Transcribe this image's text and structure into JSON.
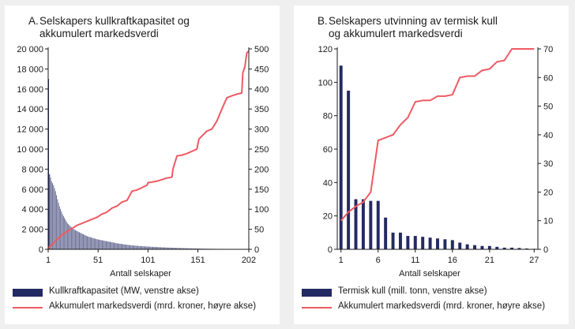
{
  "panels": [
    {
      "letter": "A.",
      "title_lines": [
        "Selskapers kullkraftkapasitet og",
        "akkumulert markedsverdi"
      ],
      "xlabel": "Antall selskaper",
      "legend": [
        {
          "kind": "bar",
          "label": "Kullkraftkapasitet (MW, venstre akse)"
        },
        {
          "kind": "line",
          "label": "Akkumulert markedsverdi (mrd. kroner, høyre akse)"
        }
      ]
    },
    {
      "letter": "B.",
      "title_lines": [
        "Selskapers utvinning av termisk kull",
        "og akkumulert markedsverdi"
      ],
      "xlabel": "Antall selskaper",
      "legend": [
        {
          "kind": "bar",
          "label": "Termisk kull (mill. tonn, venstre akse)"
        },
        {
          "kind": "line",
          "label": "Akkumulert markedsverdi (mrd. kroner, høyre akse)"
        }
      ]
    }
  ],
  "colors": {
    "bar": "#242a62",
    "bar_dense": "#6f7398",
    "line": "#ee5a63",
    "axis": "#1a1a1a"
  },
  "chart_data": [
    {
      "type": "bar",
      "title": "Selskapers kullkraftkapasitet og akkumulert markedsverdi",
      "xlabel": "Antall selskaper",
      "xlim": [
        1,
        202
      ],
      "xticks": [
        1,
        51,
        101,
        151,
        202
      ],
      "ylim_left": [
        0,
        20000
      ],
      "yticks_left": [
        "0",
        "2 000",
        "4 000",
        "6 000",
        "8 000",
        "10 000",
        "12 000",
        "14 000",
        "16 000",
        "18 000",
        "20 000"
      ],
      "ylim_right": [
        0,
        500
      ],
      "yticks_right": [
        "0",
        "50",
        "100",
        "150",
        "200",
        "250",
        "300",
        "350",
        "400",
        "450",
        "500"
      ],
      "series": [
        {
          "name": "Kullkraftkapasitet (MW, venstre akse)",
          "axis": "left",
          "kind": "bar",
          "keypoints": [
            [
              1,
              17000
            ],
            [
              2,
              7500
            ],
            [
              4,
              6800
            ],
            [
              6,
              6400
            ],
            [
              8,
              5800
            ],
            [
              10,
              5000
            ],
            [
              12,
              4300
            ],
            [
              15,
              3500
            ],
            [
              20,
              2600
            ],
            [
              25,
              2100
            ],
            [
              30,
              1800
            ],
            [
              40,
              1300
            ],
            [
              50,
              1000
            ],
            [
              60,
              800
            ],
            [
              70,
              600
            ],
            [
              80,
              450
            ],
            [
              90,
              350
            ],
            [
              100,
              280
            ],
            [
              120,
              180
            ],
            [
              140,
              110
            ],
            [
              160,
              60
            ],
            [
              180,
              30
            ],
            [
              202,
              10
            ]
          ]
        },
        {
          "name": "Akkumulert markedsverdi (mrd. kroner, høyre akse)",
          "axis": "right",
          "kind": "line",
          "points": [
            [
              1,
              0
            ],
            [
              2,
              5
            ],
            [
              5,
              12
            ],
            [
              10,
              25
            ],
            [
              15,
              36
            ],
            [
              20,
              45
            ],
            [
              25,
              52
            ],
            [
              30,
              60
            ],
            [
              40,
              70
            ],
            [
              50,
              80
            ],
            [
              55,
              88
            ],
            [
              60,
              93
            ],
            [
              65,
              103
            ],
            [
              70,
              108
            ],
            [
              75,
              118
            ],
            [
              80,
              122
            ],
            [
              85,
              145
            ],
            [
              90,
              148
            ],
            [
              100,
              160
            ],
            [
              101,
              166
            ],
            [
              110,
              170
            ],
            [
              120,
              178
            ],
            [
              125,
              180
            ],
            [
              126,
              200
            ],
            [
              130,
              233
            ],
            [
              135,
              235
            ],
            [
              140,
              239
            ],
            [
              150,
              250
            ],
            [
              152,
              275
            ],
            [
              160,
              295
            ],
            [
              165,
              300
            ],
            [
              170,
              320
            ],
            [
              175,
              350
            ],
            [
              180,
              378
            ],
            [
              185,
              383
            ],
            [
              190,
              387
            ],
            [
              195,
              390
            ],
            [
              196,
              440
            ],
            [
              198,
              455
            ],
            [
              200,
              490
            ],
            [
              202,
              495
            ]
          ]
        }
      ]
    },
    {
      "type": "bar",
      "title": "Selskapers utvinning av termisk kull og akkumulert markedsverdi",
      "xlabel": "Antall selskaper",
      "xlim": [
        1,
        27
      ],
      "xticks": [
        1,
        6,
        11,
        16,
        21,
        27
      ],
      "ylim_left": [
        0,
        120
      ],
      "yticks_left": [
        "0",
        "20",
        "40",
        "60",
        "80",
        "100",
        "120"
      ],
      "ylim_right": [
        0,
        70
      ],
      "yticks_right": [
        "0",
        "10",
        "20",
        "30",
        "40",
        "50",
        "60",
        "70"
      ],
      "series": [
        {
          "name": "Termisk kull (mill. tonn, venstre akse)",
          "axis": "left",
          "kind": "bar",
          "x": [
            1,
            2,
            3,
            4,
            5,
            6,
            7,
            8,
            9,
            10,
            11,
            12,
            13,
            14,
            15,
            16,
            17,
            18,
            19,
            20,
            21,
            22,
            23,
            24,
            25,
            26,
            27
          ],
          "values": [
            110,
            95,
            30,
            30,
            29,
            29,
            19,
            10,
            10,
            8,
            8,
            7.5,
            7,
            6.5,
            6,
            5.5,
            4,
            3,
            2.5,
            2,
            2,
            1.5,
            1,
            1,
            0.8,
            0.5,
            0.3
          ]
        },
        {
          "name": "Akkumulert markedsverdi (mrd. kroner, høyre akse)",
          "axis": "right",
          "kind": "line",
          "x": [
            1,
            2,
            3,
            4,
            5,
            6,
            7,
            8,
            9,
            10,
            11,
            12,
            13,
            14,
            15,
            16,
            17,
            18,
            19,
            20,
            21,
            22,
            23,
            24,
            25,
            26,
            27
          ],
          "values": [
            10,
            13,
            15,
            16.5,
            20,
            38,
            39,
            40,
            43.5,
            46,
            51.5,
            52,
            52,
            53.5,
            53.5,
            54,
            60,
            60.5,
            60.5,
            62.5,
            63,
            65.5,
            66,
            70,
            70,
            70,
            70
          ]
        }
      ]
    }
  ]
}
